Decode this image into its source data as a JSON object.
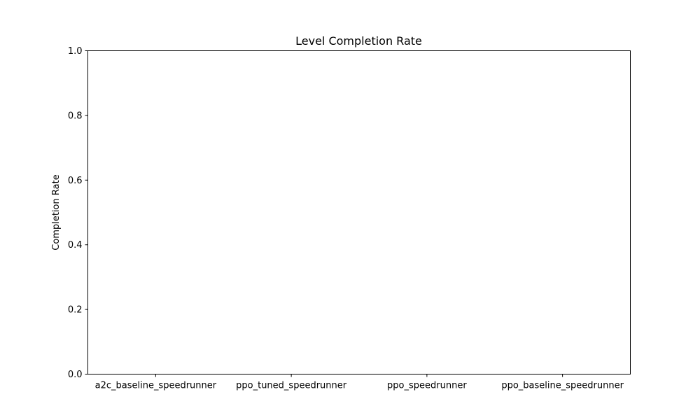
{
  "chart_data": {
    "type": "bar",
    "title": "Level Completion Rate",
    "xlabel": "",
    "ylabel": "Completion Rate",
    "categories": [
      "a2c_baseline_speedrunner",
      "ppo_tuned_speedrunner",
      "ppo_speedrunner",
      "ppo_baseline_speedrunner"
    ],
    "values": [
      0,
      0,
      0,
      0
    ],
    "ylim": [
      0,
      1
    ],
    "yticks": [
      "0.0",
      "0.2",
      "0.4",
      "0.6",
      "0.8",
      "1.0"
    ],
    "grid": false,
    "legend": "none",
    "bar_color": "#1f77b4"
  }
}
